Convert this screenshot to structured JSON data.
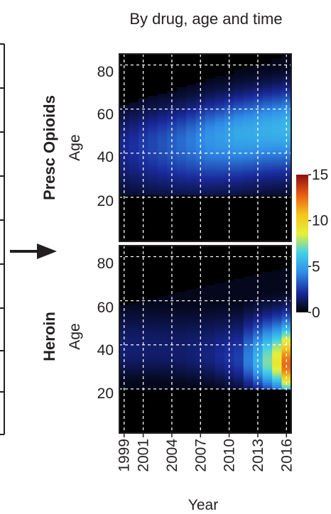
{
  "chart_data": {
    "type": "heatmap",
    "title": "By drug, age and time",
    "xlabel": "Year",
    "x_ticks": [
      "1999",
      "2001",
      "2004",
      "2007",
      "2010",
      "2013",
      "2016"
    ],
    "x_range": [
      1999,
      2016
    ],
    "y_range": [
      0,
      85
    ],
    "colorbar": {
      "min": 0,
      "max": 15,
      "ticks": [
        "0",
        "5",
        "10",
        "15"
      ],
      "colors": [
        "#000000",
        "#1a2a9a",
        "#2f8ae6",
        "#3fd0ea",
        "#e6f03a",
        "#f5c21c",
        "#e85a14",
        "#8b1010"
      ]
    },
    "panels": [
      {
        "name": "Presc Opioids",
        "ylabel": "Age",
        "y_ticks": [
          "20",
          "40",
          "60",
          "80"
        ],
        "peak": [
          {
            "year": 1999,
            "age": 43,
            "value": 2.0
          },
          {
            "year": 2002,
            "age": 44,
            "value": 2.8
          },
          {
            "year": 2005,
            "age": 45,
            "value": 3.6
          },
          {
            "year": 2008,
            "age": 47,
            "value": 4.6
          },
          {
            "year": 2011,
            "age": 49,
            "value": 5.2
          },
          {
            "year": 2014,
            "age": 51,
            "value": 5.4
          },
          {
            "year": 2016,
            "age": 52,
            "value": 5.6
          }
        ],
        "age_spread_low": 15,
        "age_spread_high": 12,
        "support": {
          "age_min": 21,
          "age_max_start": 62,
          "age_max_end": 84
        }
      },
      {
        "name": "Heroin",
        "ylabel": "Age",
        "y_ticks": [
          "20",
          "40",
          "60",
          "80"
        ],
        "peak": [
          {
            "year": 1999,
            "age": 38,
            "value": 1.6
          },
          {
            "year": 2002,
            "age": 38,
            "value": 1.5
          },
          {
            "year": 2005,
            "age": 37,
            "value": 1.5
          },
          {
            "year": 2008,
            "age": 36,
            "value": 1.8
          },
          {
            "year": 2011,
            "age": 34,
            "value": 2.6
          },
          {
            "year": 2013,
            "age": 33,
            "value": 5.5
          },
          {
            "year": 2015,
            "age": 32,
            "value": 9.0
          },
          {
            "year": 2016,
            "age": 31,
            "value": 12.5
          }
        ],
        "age_spread_low": 9,
        "age_spread_high": 13,
        "support": {
          "age_min": 20,
          "age_max_start": 58,
          "age_max_end": 75
        }
      }
    ]
  }
}
